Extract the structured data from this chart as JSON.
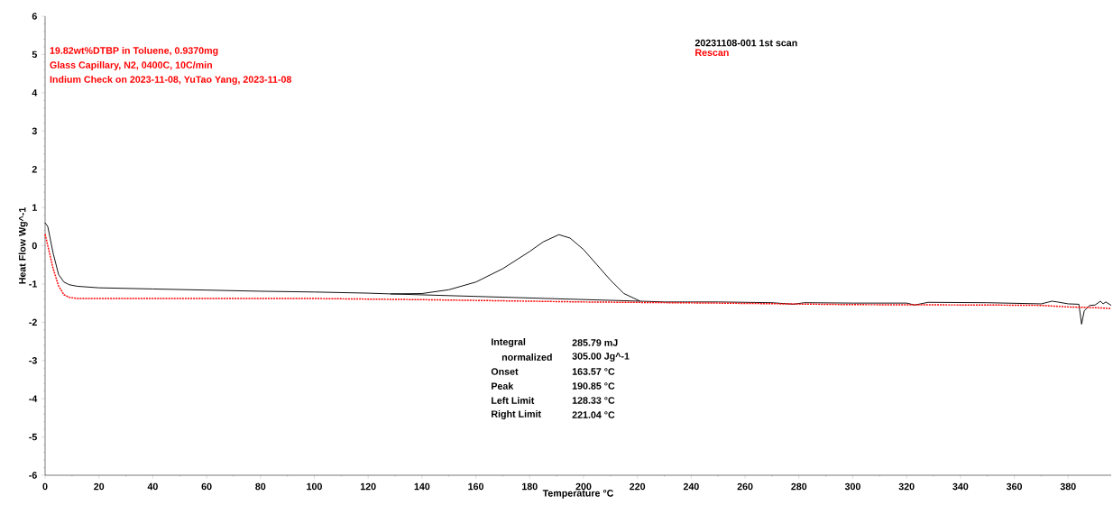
{
  "chart_data": {
    "type": "line",
    "xlabel": "Temperature °C",
    "ylabel": "Heat Flow Wg^-1",
    "xlim": [
      0,
      396
    ],
    "ylim": [
      -6,
      6
    ],
    "xticks": [
      0,
      20,
      40,
      60,
      80,
      100,
      120,
      140,
      160,
      180,
      200,
      220,
      240,
      260,
      280,
      300,
      320,
      340,
      360,
      380
    ],
    "yticks": [
      -6,
      -5,
      -4,
      -3,
      -2,
      -1,
      0,
      1,
      2,
      3,
      4,
      5,
      6
    ],
    "grid": false,
    "legend": "top right",
    "marker": "none",
    "annotations": [
      "19.82wt%DTBP in Toluene, 0.9370mg",
      "Glass Capillary, N2, 0400C, 10C/min",
      "Indium Check on 2023-11-08, YuTao Yang, 2023-11-08",
      "Integral",
      "285.79 mJ",
      "normalized",
      "305.00 Jg^-1",
      "Onset",
      "163.57 °C",
      "Peak",
      "190.85 °C",
      "Left Limit",
      "128.33 °C",
      "Right Limit",
      "221.04 °C"
    ],
    "series": [
      {
        "name": "20231108-001 1st scan",
        "color": "#000000",
        "line_style": "solid",
        "x": [
          0,
          1,
          3,
          5,
          7,
          9,
          12,
          20,
          40,
          60,
          80,
          100,
          120,
          128.33,
          140,
          150,
          160,
          170,
          180,
          185,
          190.85,
          195,
          200,
          205,
          210,
          215,
          221.04,
          230,
          250,
          270,
          278,
          282,
          300,
          320,
          323,
          328,
          350,
          370,
          374,
          376,
          380,
          384,
          385,
          386,
          388,
          390,
          392,
          393,
          394,
          396
        ],
        "values": [
          0.6,
          0.5,
          -0.2,
          -0.75,
          -0.95,
          -1.02,
          -1.06,
          -1.1,
          -1.13,
          -1.16,
          -1.19,
          -1.21,
          -1.24,
          -1.26,
          -1.25,
          -1.15,
          -0.95,
          -0.6,
          -0.15,
          0.1,
          0.29,
          0.2,
          -0.1,
          -0.5,
          -0.9,
          -1.25,
          -1.45,
          -1.47,
          -1.47,
          -1.49,
          -1.53,
          -1.49,
          -1.5,
          -1.5,
          -1.55,
          -1.48,
          -1.49,
          -1.52,
          -1.45,
          -1.47,
          -1.52,
          -1.53,
          -2.05,
          -1.7,
          -1.56,
          -1.55,
          -1.45,
          -1.52,
          -1.47,
          -1.56
        ]
      },
      {
        "color": "#000000",
        "line_style": "solid",
        "x": [
          128.33,
          221.04
        ],
        "values": [
          -1.26,
          -1.45
        ]
      },
      {
        "name": "Rescan",
        "color": "#ff0000",
        "line_style": "dotted",
        "x": [
          0,
          1,
          3,
          5,
          7,
          9,
          12,
          20,
          60,
          100,
          140,
          180,
          200,
          250,
          300,
          350,
          370,
          380,
          390,
          396
        ],
        "values": [
          0.3,
          0.0,
          -0.6,
          -1.05,
          -1.28,
          -1.35,
          -1.38,
          -1.38,
          -1.38,
          -1.38,
          -1.41,
          -1.45,
          -1.47,
          -1.5,
          -1.54,
          -1.55,
          -1.56,
          -1.6,
          -1.62,
          -1.64
        ]
      }
    ]
  }
}
